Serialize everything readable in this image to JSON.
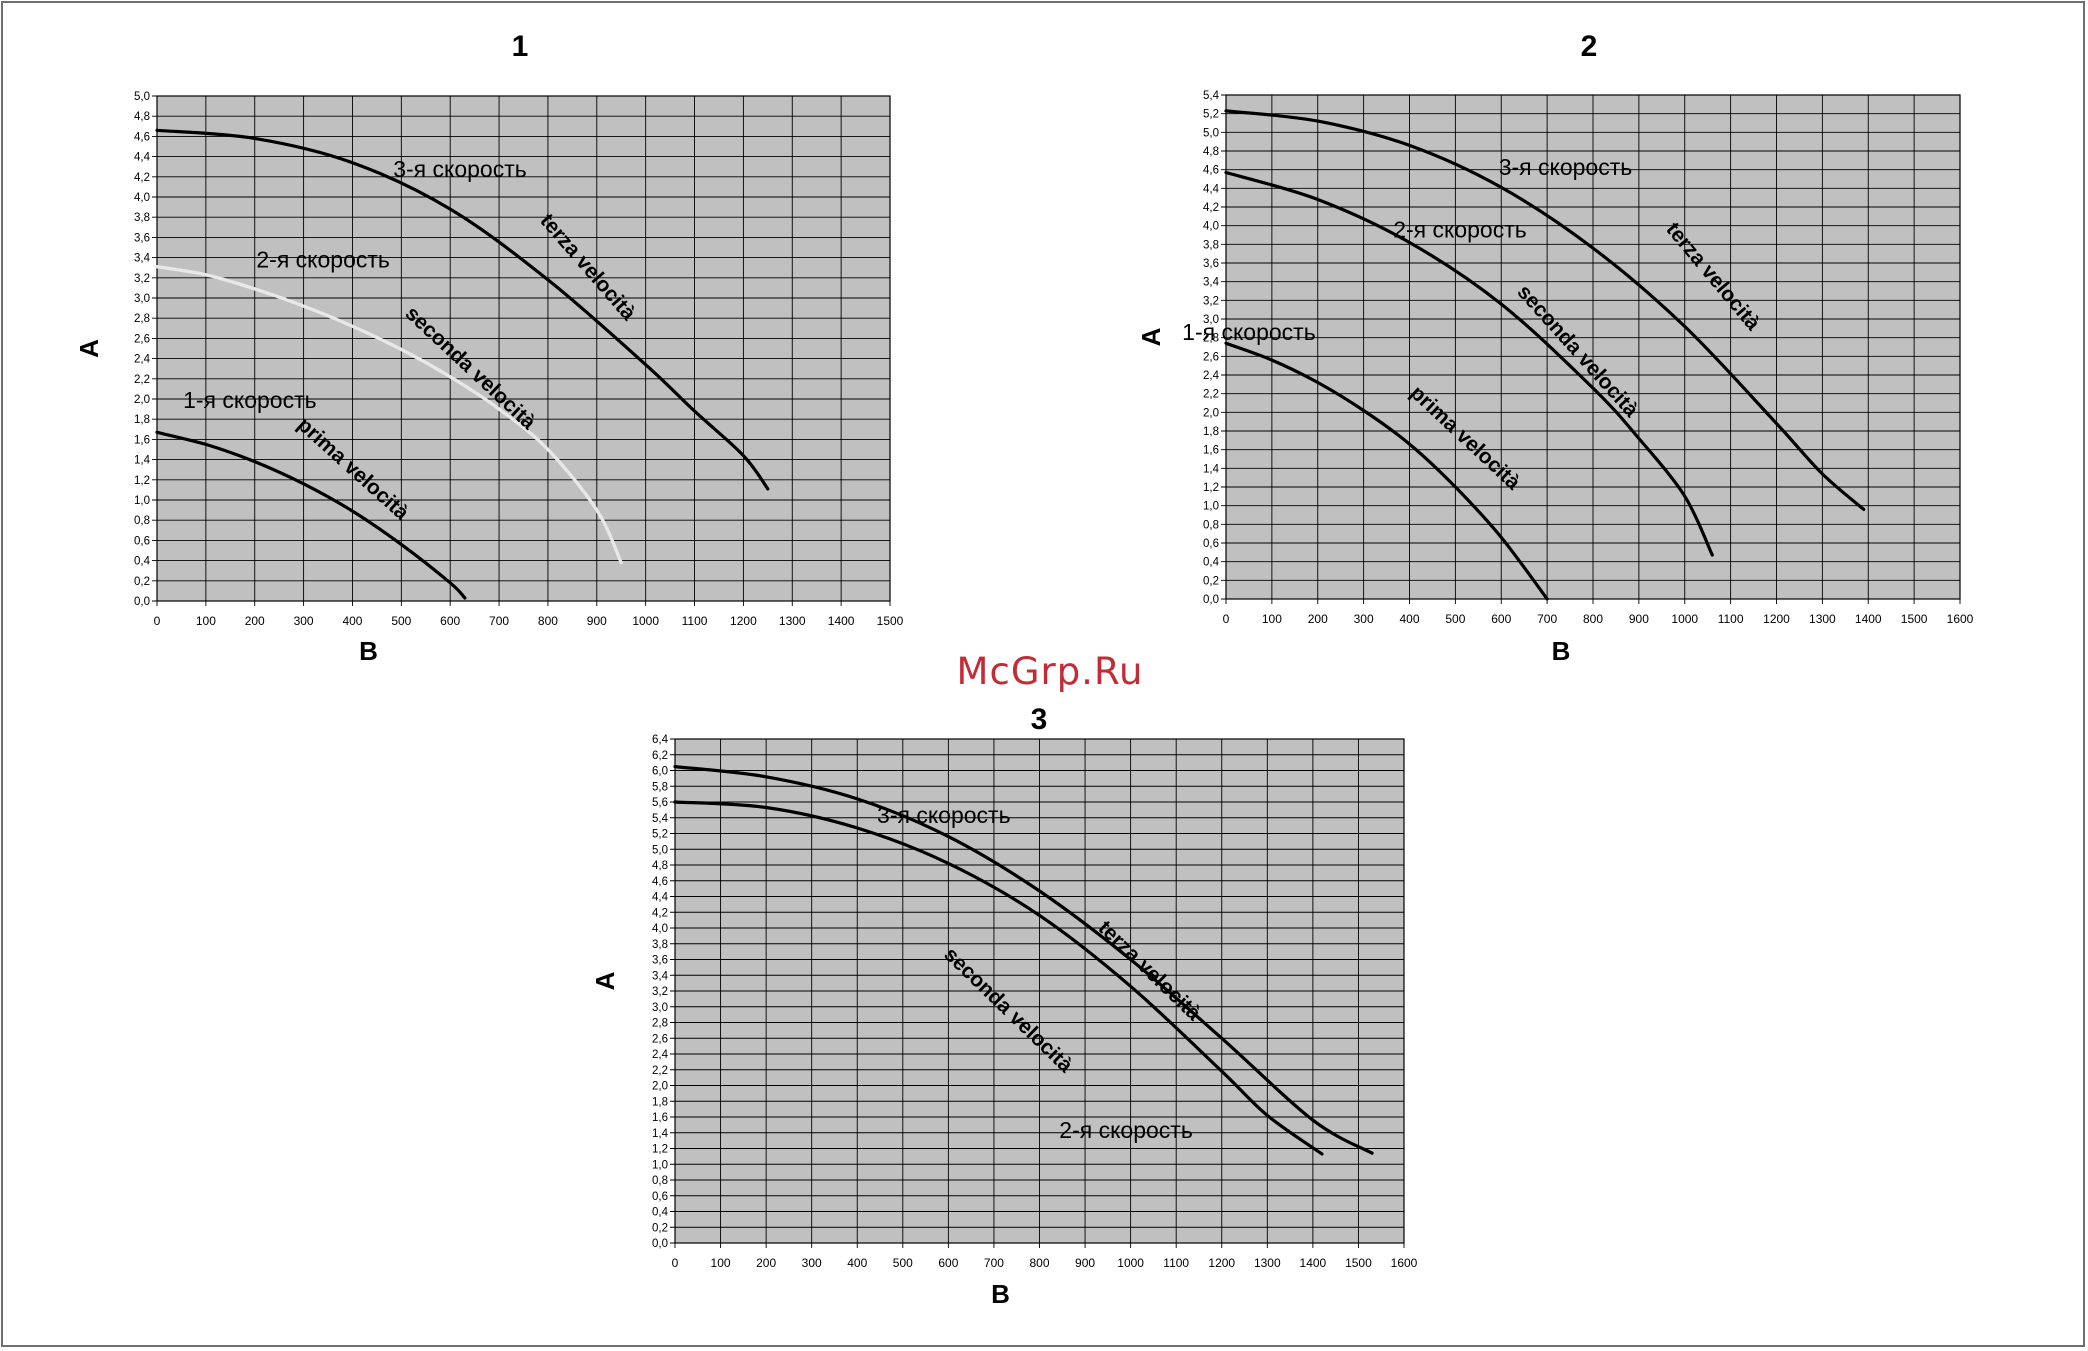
{
  "watermark": "McGrp.Ru",
  "colors": {
    "plot_bg": "#c0c0c0",
    "grid": "#000000",
    "curve": "#000000",
    "dotted_curve": "#e8e8e8",
    "watermark": "#c42b35"
  },
  "chart_data": [
    {
      "type": "line",
      "title": "1",
      "xlabel": "B",
      "ylabel": "A",
      "xlim": [
        0,
        1500
      ],
      "ylim": [
        0,
        5.0
      ],
      "xticks": [
        "0",
        "100",
        "200",
        "300",
        "400",
        "500",
        "600",
        "700",
        "800",
        "900",
        "1000",
        "1100",
        "1200",
        "1300",
        "1400",
        "1500"
      ],
      "yticks": [
        "0,0",
        "0,2",
        "0,4",
        "0,6",
        "0,8",
        "1,0",
        "1,2",
        "1,4",
        "1,6",
        "1,8",
        "2,0",
        "2,2",
        "2,4",
        "2,6",
        "2,8",
        "3,0",
        "3,2",
        "3,4",
        "3,6",
        "3,8",
        "4,0",
        "4,2",
        "4,4",
        "4,6",
        "4,8",
        "5,0"
      ],
      "grid": true,
      "series": [
        {
          "name": "1-я скорость",
          "x": [
            0,
            100,
            200,
            300,
            400,
            500,
            600,
            630
          ],
          "y": [
            1.67,
            1.55,
            1.38,
            1.16,
            0.89,
            0.56,
            0.18,
            0.03
          ]
        },
        {
          "name": "2-я скорость",
          "style": "dotted",
          "x": [
            0,
            100,
            200,
            300,
            400,
            500,
            600,
            700,
            800,
            900,
            950
          ],
          "y": [
            3.31,
            3.23,
            3.09,
            2.92,
            2.72,
            2.49,
            2.22,
            1.9,
            1.5,
            0.9,
            0.38
          ]
        },
        {
          "name": "3-я скорость",
          "x": [
            0,
            200,
            400,
            600,
            800,
            1000,
            1100,
            1200,
            1250
          ],
          "y": [
            4.66,
            4.58,
            4.34,
            3.88,
            3.18,
            2.34,
            1.88,
            1.44,
            1.11
          ]
        }
      ],
      "labels": [
        {
          "text": "3-я скорость",
          "x": 620,
          "y": 4.26,
          "rotate": 0,
          "bold": false
        },
        {
          "text": "terza velocità",
          "x": 880,
          "y": 3.3,
          "rotate": 49,
          "bold": true
        },
        {
          "text": "2-я скорость",
          "x": 340,
          "y": 3.36,
          "rotate": 0,
          "bold": false
        },
        {
          "text": "seconda velocità",
          "x": 640,
          "y": 2.3,
          "rotate": 43,
          "bold": true
        },
        {
          "text": "1-я скорость",
          "x": 190,
          "y": 1.97,
          "rotate": 0,
          "bold": false
        },
        {
          "text": "prima velocità",
          "x": 400,
          "y": 1.3,
          "rotate": 42,
          "bold": true
        }
      ]
    },
    {
      "type": "line",
      "title": "2",
      "xlabel": "B",
      "ylabel": "A",
      "xlim": [
        0,
        1600
      ],
      "ylim": [
        0,
        5.4
      ],
      "xticks": [
        "0",
        "100",
        "200",
        "300",
        "400",
        "500",
        "600",
        "700",
        "800",
        "900",
        "1000",
        "1100",
        "1200",
        "1300",
        "1400",
        "1500",
        "1600"
      ],
      "yticks": [
        "0,0",
        "0,2",
        "0,4",
        "0,6",
        "0,8",
        "1,0",
        "1,2",
        "1,4",
        "1,6",
        "1,8",
        "2,0",
        "2,2",
        "2,4",
        "2,6",
        "2,8",
        "3,0",
        "3,2",
        "3,4",
        "3,6",
        "3,8",
        "4,0",
        "4,2",
        "4,4",
        "4,6",
        "4,8",
        "5,0",
        "5,2",
        "5,4"
      ],
      "grid": true,
      "series": [
        {
          "name": "1-я скорость",
          "x": [
            0,
            100,
            200,
            300,
            400,
            500,
            600,
            700
          ],
          "y": [
            2.74,
            2.56,
            2.32,
            2.02,
            1.66,
            1.2,
            0.66,
            0.0
          ]
        },
        {
          "name": "2-я скорость",
          "x": [
            0,
            200,
            400,
            600,
            800,
            900,
            1000,
            1060
          ],
          "y": [
            4.57,
            4.28,
            3.82,
            3.16,
            2.26,
            1.72,
            1.1,
            0.47
          ]
        },
        {
          "name": "3-я скорость",
          "x": [
            0,
            200,
            400,
            600,
            800,
            1000,
            1200,
            1300,
            1390
          ],
          "y": [
            5.23,
            5.12,
            4.86,
            4.41,
            3.76,
            2.92,
            1.88,
            1.34,
            0.96
          ]
        }
      ],
      "labels": [
        {
          "text": "3-я скорость",
          "x": 740,
          "y": 4.61,
          "rotate": 0,
          "bold": false
        },
        {
          "text": "terza velocità",
          "x": 1060,
          "y": 3.45,
          "rotate": 50,
          "bold": true
        },
        {
          "text": "2-я скорость",
          "x": 510,
          "y": 3.94,
          "rotate": 0,
          "bold": false
        },
        {
          "text": "seconda velocità",
          "x": 765,
          "y": 2.65,
          "rotate": 48,
          "bold": true
        },
        {
          "text": "1-я скорость",
          "x": 50,
          "y": 2.84,
          "rotate": 0,
          "bold": false
        },
        {
          "text": "prima velocità",
          "x": 520,
          "y": 1.72,
          "rotate": 43,
          "bold": true
        }
      ]
    },
    {
      "type": "line",
      "title": "3",
      "xlabel": "B",
      "ylabel": "A",
      "xlim": [
        0,
        1600
      ],
      "ylim": [
        0,
        6.4
      ],
      "xticks": [
        "0",
        "100",
        "200",
        "300",
        "400",
        "500",
        "600",
        "700",
        "800",
        "900",
        "1000",
        "1100",
        "1200",
        "1300",
        "1400",
        "1500",
        "1600"
      ],
      "yticks": [
        "0,0",
        "0,2",
        "0,4",
        "0,6",
        "0,8",
        "1,0",
        "1,2",
        "1,4",
        "1,6",
        "1,8",
        "2,0",
        "2,2",
        "2,4",
        "2,6",
        "2,8",
        "3,0",
        "3,2",
        "3,4",
        "3,6",
        "3,8",
        "4,0",
        "4,2",
        "4,4",
        "4,6",
        "4,8",
        "5,0",
        "5,2",
        "5,4",
        "5,6",
        "5,8",
        "6,0",
        "6,2",
        "6,4"
      ],
      "grid": true,
      "series": [
        {
          "name": "2-я скорость",
          "x": [
            0,
            200,
            400,
            600,
            800,
            1000,
            1200,
            1300,
            1420
          ],
          "y": [
            5.6,
            5.53,
            5.27,
            4.82,
            4.16,
            3.26,
            2.18,
            1.62,
            1.13
          ]
        },
        {
          "name": "3-я скорость",
          "x": [
            0,
            200,
            400,
            600,
            800,
            1000,
            1200,
            1400,
            1530
          ],
          "y": [
            6.05,
            5.92,
            5.64,
            5.16,
            4.47,
            3.6,
            2.6,
            1.56,
            1.14
          ]
        }
      ],
      "labels": [
        {
          "text": "3-я скорость",
          "x": 590,
          "y": 5.41,
          "rotate": 0,
          "bold": false
        },
        {
          "text": "terza velocità",
          "x": 1040,
          "y": 3.45,
          "rotate": 44,
          "bold": true
        },
        {
          "text": "seconda velocità",
          "x": 730,
          "y": 2.95,
          "rotate": 44,
          "bold": true
        },
        {
          "text": "2-я скорость",
          "x": 990,
          "y": 1.41,
          "rotate": 0,
          "bold": false
        }
      ]
    }
  ]
}
